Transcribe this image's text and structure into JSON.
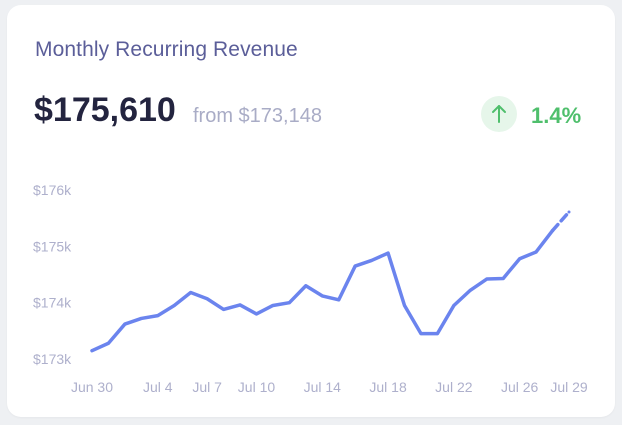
{
  "card": {
    "title": "Monthly Recurring Revenue",
    "value": "$175,610",
    "from_text": "from $173,148",
    "change": "1.4%",
    "change_icon": "arrow-up-icon"
  },
  "colors": {
    "line": "#6b84ee",
    "positive": "#4fbf6c",
    "positive_bg": "#e6f6ea",
    "title": "#5b5e99",
    "muted": "#a9acc6"
  },
  "chart_data": {
    "type": "line",
    "title": "",
    "xlabel": "",
    "ylabel": "",
    "ylim": [
      172950,
      176050
    ],
    "grid": false,
    "y_ticks": [
      {
        "value": 173000,
        "label": "$173k"
      },
      {
        "value": 174000,
        "label": "$174k"
      },
      {
        "value": 175000,
        "label": "$175k"
      },
      {
        "value": 176000,
        "label": "$176k"
      }
    ],
    "x_range": [
      0,
      29
    ],
    "x_ticks": [
      {
        "day": 0,
        "label": "Jun 30"
      },
      {
        "day": 4,
        "label": "Jul 4"
      },
      {
        "day": 7,
        "label": "Jul 7"
      },
      {
        "day": 10,
        "label": "Jul 10"
      },
      {
        "day": 14,
        "label": "Jul 14"
      },
      {
        "day": 18,
        "label": "Jul 18"
      },
      {
        "day": 22,
        "label": "Jul 22"
      },
      {
        "day": 26,
        "label": "Jul 26"
      },
      {
        "day": 29,
        "label": "Jul 29"
      }
    ],
    "series": [
      {
        "dates": [
          "Jun 30",
          "Jul 1",
          "Jul 2",
          "Jul 3",
          "Jul 4",
          "Jul 5",
          "Jul 6",
          "Jul 7",
          "Jul 8",
          "Jul 9",
          "Jul 10",
          "Jul 11",
          "Jul 12",
          "Jul 13",
          "Jul 14",
          "Jul 15",
          "Jul 16",
          "Jul 17",
          "Jul 18",
          "Jul 19",
          "Jul 20",
          "Jul 21",
          "Jul 22",
          "Jul 23",
          "Jul 24",
          "Jul 25",
          "Jul 26",
          "Jul 27",
          "Jul 28",
          "Jul 29"
        ],
        "values": [
          173148,
          173280,
          173620,
          173720,
          173770,
          173950,
          174180,
          174070,
          173880,
          173960,
          173800,
          173950,
          174000,
          174300,
          174120,
          174050,
          174650,
          174750,
          174880,
          173950,
          173450,
          173450,
          173950,
          174220,
          174420,
          174430,
          174780,
          174900,
          175280,
          175610
        ],
        "dashed_from_index": 28
      }
    ]
  }
}
